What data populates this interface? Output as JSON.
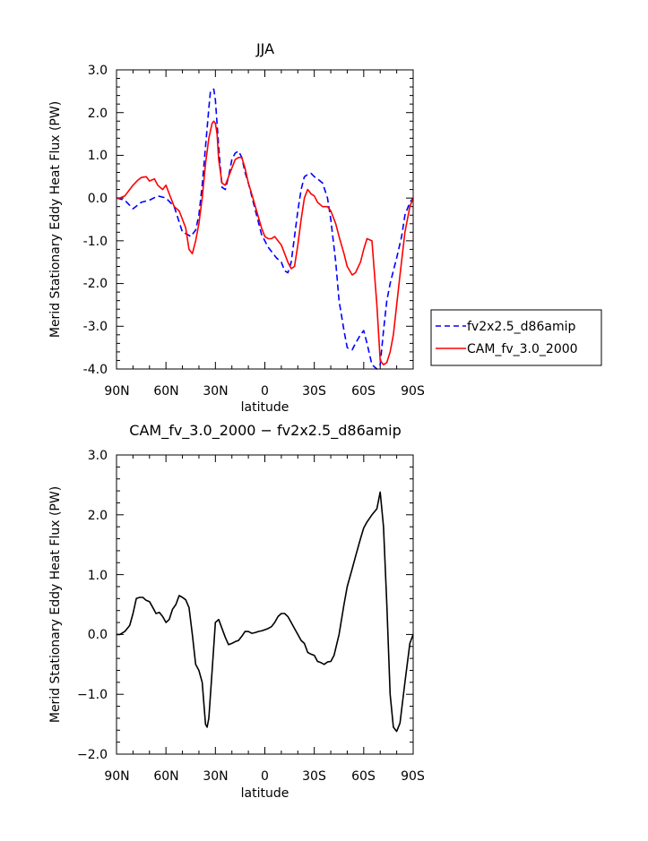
{
  "chart_data": [
    {
      "type": "line",
      "title": "JJA",
      "xlabel": "latitude",
      "ylabel": "Merid Stationary Eddy Heat Flux (PW)",
      "xlim": [
        90,
        -90
      ],
      "ylim": [
        -4.0,
        3.0
      ],
      "x_ticks": [
        90,
        60,
        30,
        0,
        -30,
        -60,
        -90
      ],
      "x_tick_labels": [
        "90N",
        "60N",
        "30N",
        "0",
        "30S",
        "60S",
        "90S"
      ],
      "y_ticks": [
        -4,
        -3,
        -2,
        -1,
        0,
        1,
        2,
        3
      ],
      "y_tick_labels": [
        "-4.0",
        "-3.0",
        "-2.0",
        "-1.0",
        "0.0",
        "1.0",
        "2.0",
        "3.0"
      ],
      "grid": false,
      "legend_position": "right-bottom-outside",
      "series": [
        {
          "name": "fv2x2.5_d86amip",
          "color": "#0000ff",
          "style": "dashed",
          "x": [
            90,
            85,
            80,
            75,
            70,
            65,
            60,
            55,
            50,
            47,
            45,
            42,
            40,
            38,
            36,
            34,
            33,
            31,
            30,
            28,
            26,
            24,
            22,
            20,
            18,
            16,
            14,
            12,
            10,
            8,
            5,
            2,
            0,
            -2,
            -4,
            -7,
            -10,
            -12,
            -14,
            -16,
            -18,
            -20,
            -22,
            -24,
            -26,
            -28,
            -30,
            -32,
            -35,
            -38,
            -40,
            -43,
            -45,
            -48,
            -50,
            -53,
            -55,
            -58,
            -60,
            -62,
            -65,
            -68,
            -70,
            -72,
            -74,
            -76,
            -78,
            -80,
            -83,
            -85,
            -88,
            -90
          ],
          "y": [
            0.0,
            -0.05,
            -0.25,
            -0.1,
            -0.05,
            0.05,
            0.0,
            -0.2,
            -0.8,
            -0.85,
            -0.9,
            -0.75,
            -0.4,
            0.3,
            1.2,
            2.1,
            2.5,
            2.55,
            2.3,
            1.2,
            0.25,
            0.2,
            0.5,
            0.9,
            1.05,
            1.1,
            0.95,
            0.6,
            0.35,
            0.05,
            -0.4,
            -0.85,
            -1.0,
            -1.15,
            -1.25,
            -1.4,
            -1.5,
            -1.7,
            -1.75,
            -1.5,
            -0.9,
            -0.3,
            0.2,
            0.5,
            0.55,
            0.58,
            0.5,
            0.45,
            0.35,
            0.0,
            -0.5,
            -1.5,
            -2.4,
            -3.1,
            -3.5,
            -3.55,
            -3.4,
            -3.2,
            -3.1,
            -3.4,
            -3.9,
            -4.0,
            -3.9,
            -3.1,
            -2.4,
            -2.0,
            -1.7,
            -1.4,
            -0.9,
            -0.4,
            -0.1,
            0.0
          ]
        },
        {
          "name": "CAM_fv_3.0_2000",
          "color": "#ff0000",
          "style": "solid",
          "x": [
            90,
            88,
            85,
            82,
            80,
            77,
            75,
            72,
            70,
            67,
            65,
            62,
            60,
            58,
            55,
            52,
            50,
            48,
            46,
            44,
            42,
            40,
            38,
            36,
            34,
            32,
            31,
            30,
            29,
            28,
            26,
            24,
            22,
            20,
            18,
            16,
            14,
            12,
            10,
            8,
            5,
            2,
            0,
            -2,
            -4,
            -6,
            -8,
            -10,
            -12,
            -14,
            -16,
            -18,
            -20,
            -22,
            -24,
            -26,
            -28,
            -30,
            -32,
            -35,
            -38,
            -40,
            -43,
            -45,
            -48,
            -50,
            -53,
            -55,
            -58,
            -60,
            -62,
            -65,
            -68,
            -70,
            -72,
            -74,
            -76,
            -78,
            -80,
            -82,
            -85,
            -88,
            -90
          ],
          "y": [
            0.0,
            0.0,
            0.05,
            0.2,
            0.3,
            0.42,
            0.48,
            0.5,
            0.4,
            0.45,
            0.3,
            0.2,
            0.3,
            0.1,
            -0.2,
            -0.3,
            -0.5,
            -0.7,
            -1.2,
            -1.3,
            -1.0,
            -0.6,
            0.0,
            0.8,
            1.4,
            1.75,
            1.8,
            1.75,
            1.5,
            0.9,
            0.35,
            0.3,
            0.5,
            0.7,
            0.9,
            0.95,
            0.95,
            0.7,
            0.35,
            0.1,
            -0.3,
            -0.7,
            -0.9,
            -0.95,
            -0.95,
            -0.9,
            -1.0,
            -1.1,
            -1.3,
            -1.5,
            -1.65,
            -1.6,
            -1.1,
            -0.5,
            0.0,
            0.2,
            0.1,
            0.05,
            -0.1,
            -0.2,
            -0.2,
            -0.3,
            -0.6,
            -0.9,
            -1.3,
            -1.6,
            -1.8,
            -1.75,
            -1.5,
            -1.2,
            -0.95,
            -1.0,
            -2.5,
            -3.8,
            -3.9,
            -3.85,
            -3.6,
            -3.2,
            -2.5,
            -1.8,
            -0.8,
            -0.2,
            0.0
          ]
        }
      ]
    },
    {
      "type": "line",
      "title": "CAM_fv_3.0_2000 − fv2x2.5_d86amip",
      "xlabel": "latitude",
      "ylabel": "Merid Stationary Eddy Heat Flux (PW)",
      "xlim": [
        90,
        -90
      ],
      "ylim": [
        -2.0,
        3.0
      ],
      "x_ticks": [
        90,
        60,
        30,
        0,
        -30,
        -60,
        -90
      ],
      "x_tick_labels": [
        "90N",
        "60N",
        "30N",
        "0",
        "30S",
        "60S",
        "90S"
      ],
      "y_ticks": [
        -2,
        -1,
        0,
        1,
        2,
        3
      ],
      "y_tick_labels": [
        "−2.0",
        "−1.0",
        "0.0",
        "1.0",
        "2.0",
        "3.0"
      ],
      "grid": false,
      "series": [
        {
          "color": "#000000",
          "style": "solid",
          "x": [
            90,
            88,
            85,
            82,
            80,
            78,
            76,
            74,
            72,
            70,
            68,
            66,
            64,
            62,
            60,
            58,
            56,
            54,
            52,
            50,
            48,
            46,
            44,
            42,
            40,
            38,
            36,
            35,
            34,
            32,
            30,
            28,
            26,
            24,
            22,
            20,
            18,
            16,
            14,
            12,
            10,
            8,
            6,
            4,
            2,
            0,
            -2,
            -4,
            -6,
            -8,
            -10,
            -12,
            -14,
            -16,
            -18,
            -20,
            -22,
            -24,
            -26,
            -28,
            -30,
            -32,
            -34,
            -36,
            -38,
            -40,
            -42,
            -45,
            -48,
            -50,
            -53,
            -55,
            -58,
            -60,
            -62,
            -65,
            -68,
            -70,
            -72,
            -74,
            -76,
            -78,
            -80,
            -82,
            -85,
            -88,
            -90
          ],
          "y": [
            0.0,
            0.0,
            0.05,
            0.15,
            0.35,
            0.6,
            0.62,
            0.62,
            0.57,
            0.55,
            0.45,
            0.35,
            0.37,
            0.3,
            0.2,
            0.25,
            0.42,
            0.5,
            0.65,
            0.62,
            0.58,
            0.45,
            0.0,
            -0.5,
            -0.6,
            -0.8,
            -1.5,
            -1.55,
            -1.4,
            -0.6,
            0.2,
            0.25,
            0.1,
            -0.05,
            -0.17,
            -0.15,
            -0.12,
            -0.1,
            -0.03,
            0.05,
            0.05,
            0.02,
            0.03,
            0.05,
            0.06,
            0.08,
            0.1,
            0.13,
            0.2,
            0.3,
            0.35,
            0.35,
            0.3,
            0.2,
            0.1,
            0.0,
            -0.1,
            -0.15,
            -0.3,
            -0.33,
            -0.35,
            -0.45,
            -0.47,
            -0.5,
            -0.46,
            -0.45,
            -0.35,
            0.0,
            0.5,
            0.8,
            1.1,
            1.3,
            1.6,
            1.78,
            1.88,
            2.0,
            2.1,
            2.38,
            1.8,
            0.5,
            -1.0,
            -1.55,
            -1.62,
            -1.48,
            -0.8,
            -0.15,
            0.0
          ]
        }
      ]
    }
  ]
}
